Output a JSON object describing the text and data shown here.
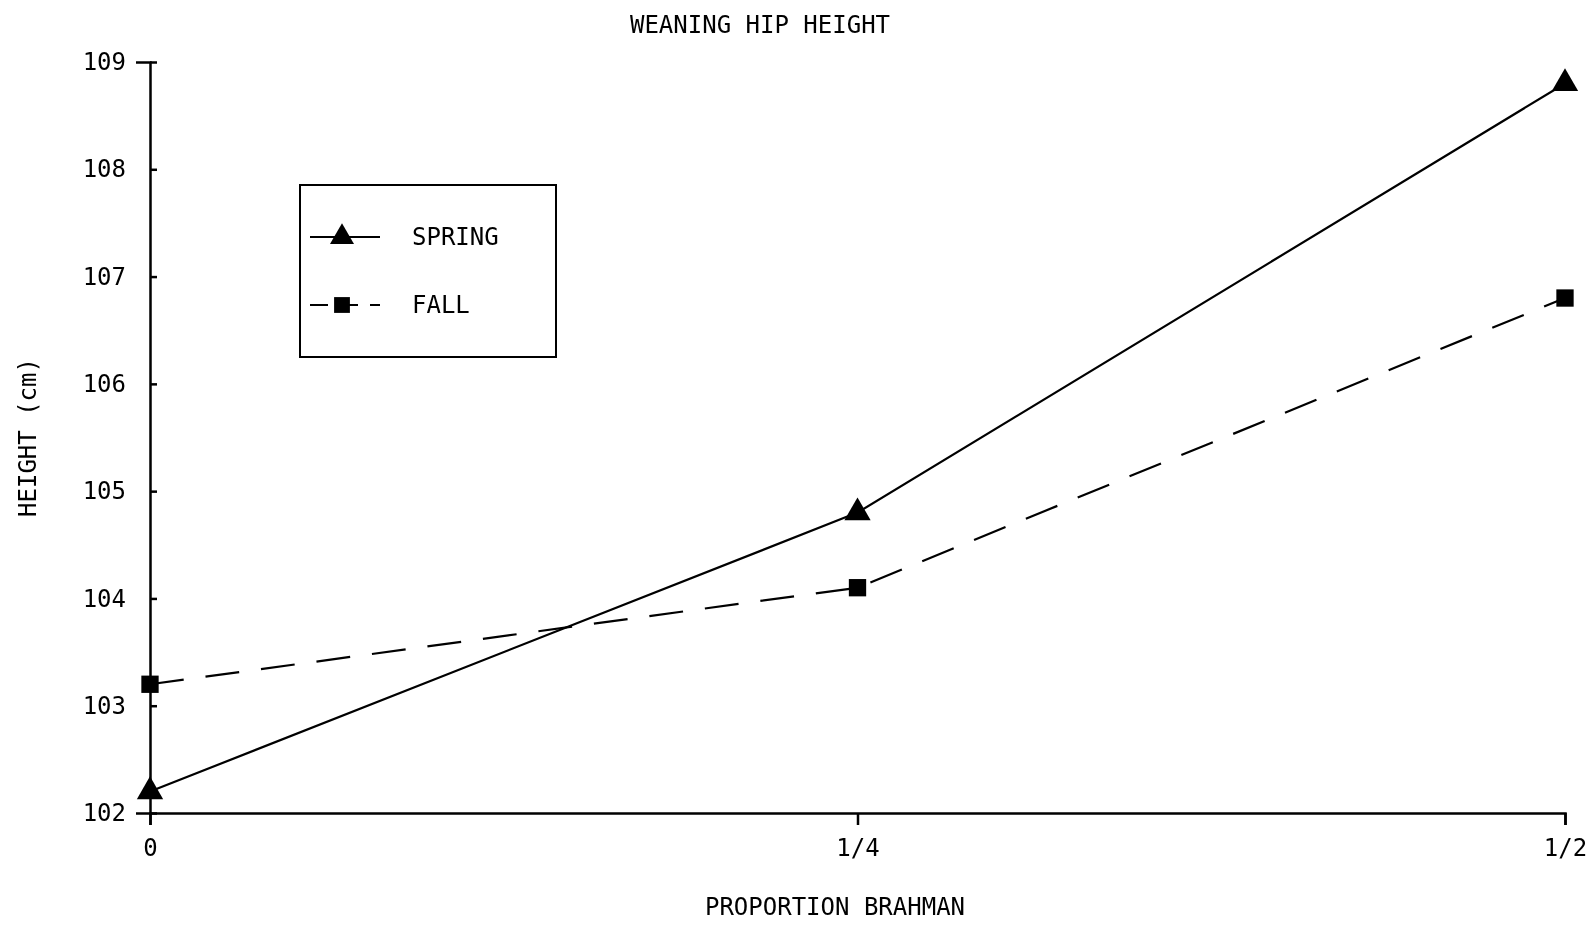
{
  "chart_data": {
    "type": "line",
    "title": "WEANING HIP HEIGHT",
    "xlabel": "PROPORTION BRAHMAN",
    "ylabel": "HEIGHT (cm)",
    "x": [
      0,
      0.25,
      0.5
    ],
    "xlim": [
      0,
      0.5
    ],
    "xticks": [
      0,
      {
        "value": 0.25,
        "label": "1/4"
      },
      {
        "value": 0.5,
        "label": "1/2"
      }
    ],
    "ylim": [
      102,
      109
    ],
    "yticks": [
      102,
      103,
      104,
      105,
      106,
      107,
      108,
      109
    ],
    "grid": false,
    "legend": "top left",
    "series": [
      {
        "name": "SPRING",
        "color": "#000000",
        "values": [
          102.2,
          104.8,
          108.8
        ],
        "marker": "triangle",
        "line_style": "solid"
      },
      {
        "name": "FALL",
        "color": "#000000",
        "values": [
          103.2,
          104.1,
          106.8
        ],
        "marker": "square",
        "line_style": "dashed"
      }
    ]
  }
}
